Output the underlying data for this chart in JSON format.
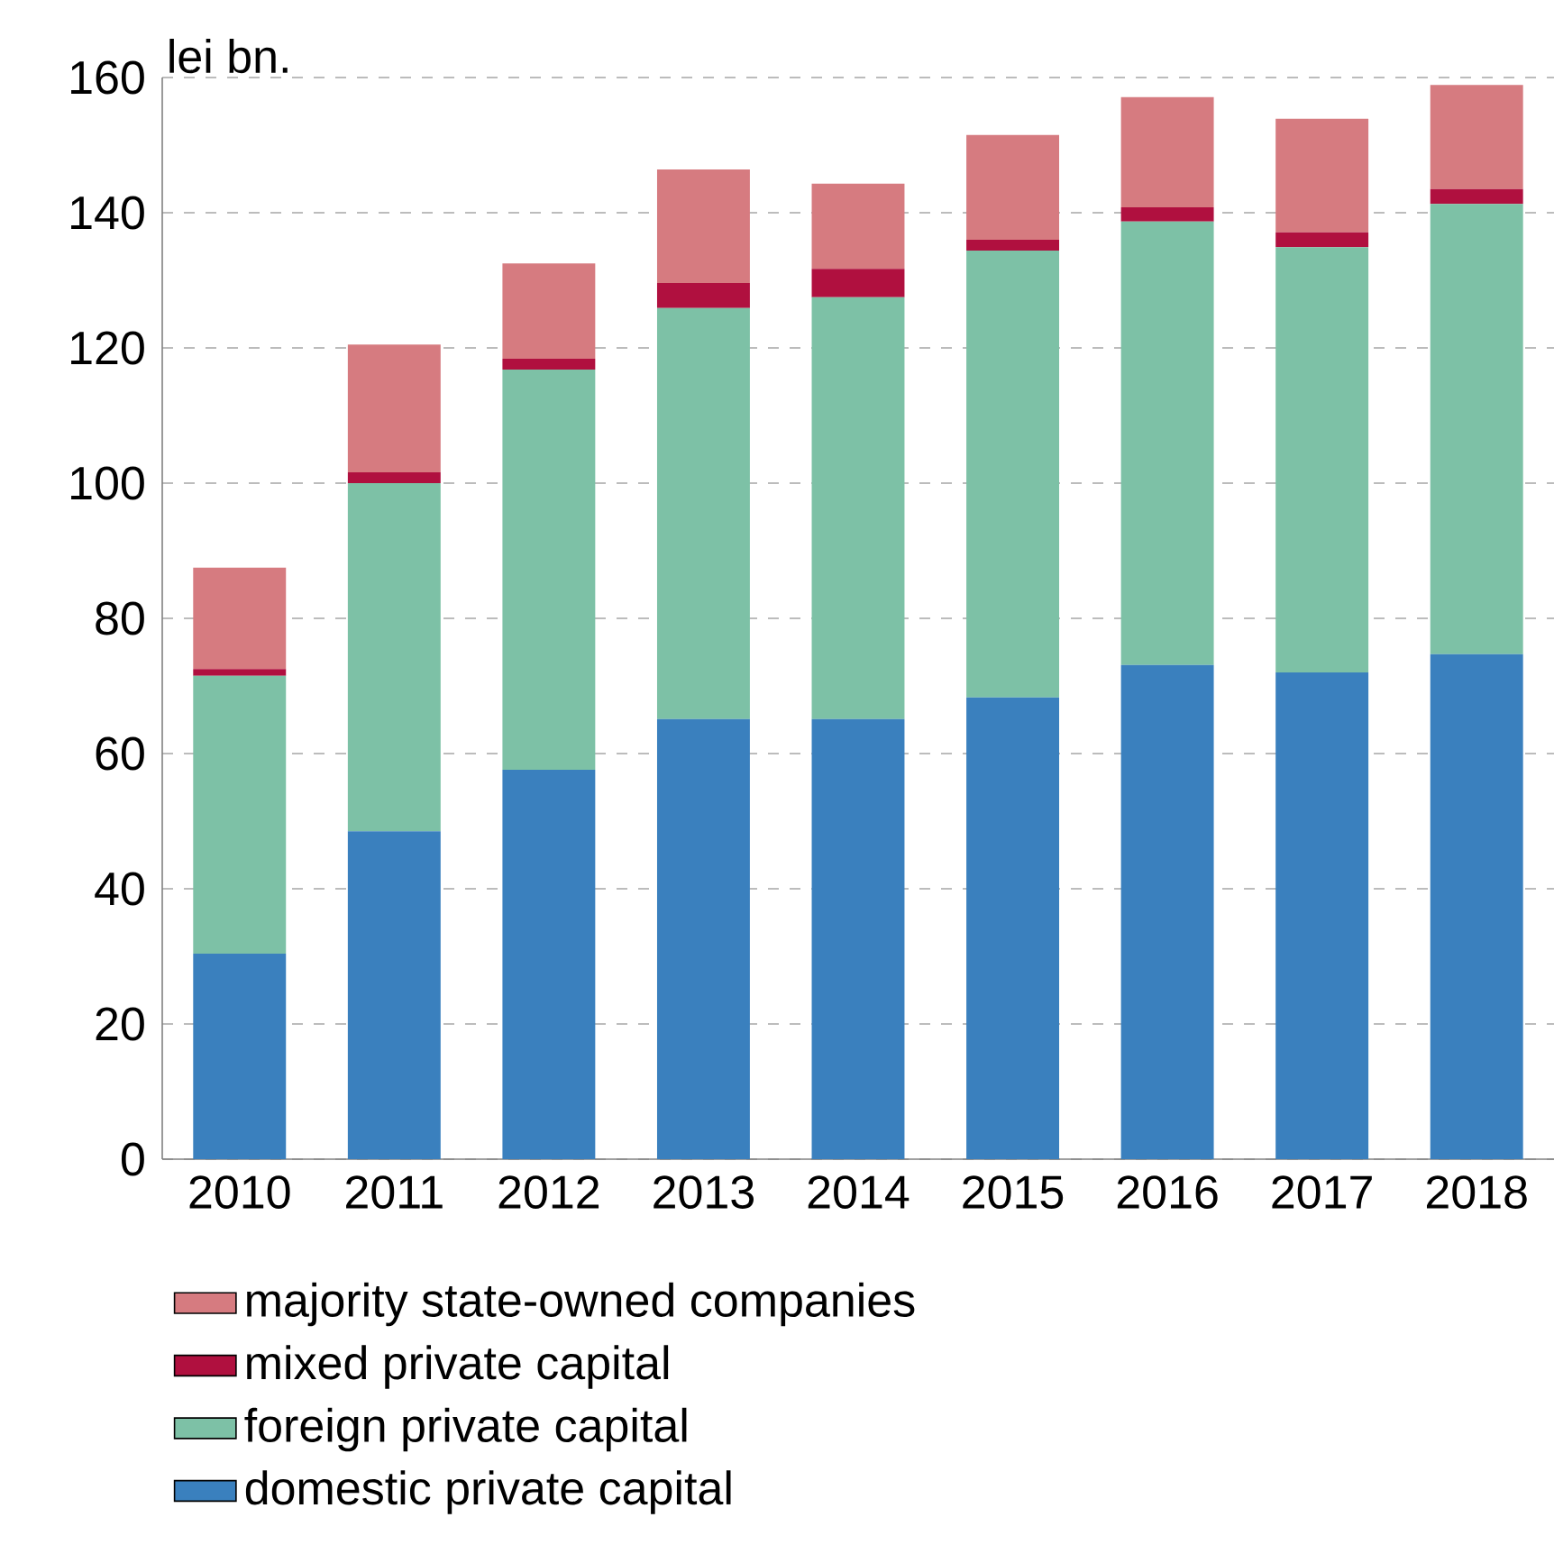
{
  "chart_data": {
    "type": "bar",
    "stacked": true,
    "ylabel": "lei bn.",
    "categories": [
      "2010",
      "2011",
      "2012",
      "2013",
      "2014",
      "2015",
      "2016",
      "2017",
      "2018"
    ],
    "series": [
      {
        "name": "domestic private capital",
        "color": "#3a80be",
        "values": [
          30.4,
          48.5,
          57.6,
          65.1,
          65.1,
          68.3,
          73.1,
          72.0,
          74.7
        ]
      },
      {
        "name": "foreign private capital",
        "color": "#7dc1a6",
        "values": [
          41.1,
          51.5,
          59.2,
          60.8,
          62.4,
          66.1,
          65.6,
          62.9,
          66.6
        ]
      },
      {
        "name": "mixed private capital",
        "color": "#b0103f",
        "values": [
          1.0,
          1.6,
          1.6,
          3.7,
          4.2,
          1.6,
          2.1,
          2.2,
          2.2
        ]
      },
      {
        "name": "majority state-owned companies",
        "color": "#d67b80",
        "values": [
          15.0,
          18.9,
          14.1,
          16.8,
          12.6,
          15.5,
          16.3,
          16.8,
          15.4
        ]
      }
    ],
    "ylim": [
      0,
      160
    ],
    "yticks": [
      0,
      20,
      40,
      60,
      80,
      100,
      120,
      140,
      160
    ],
    "grid": "y",
    "legend": "bottom"
  }
}
